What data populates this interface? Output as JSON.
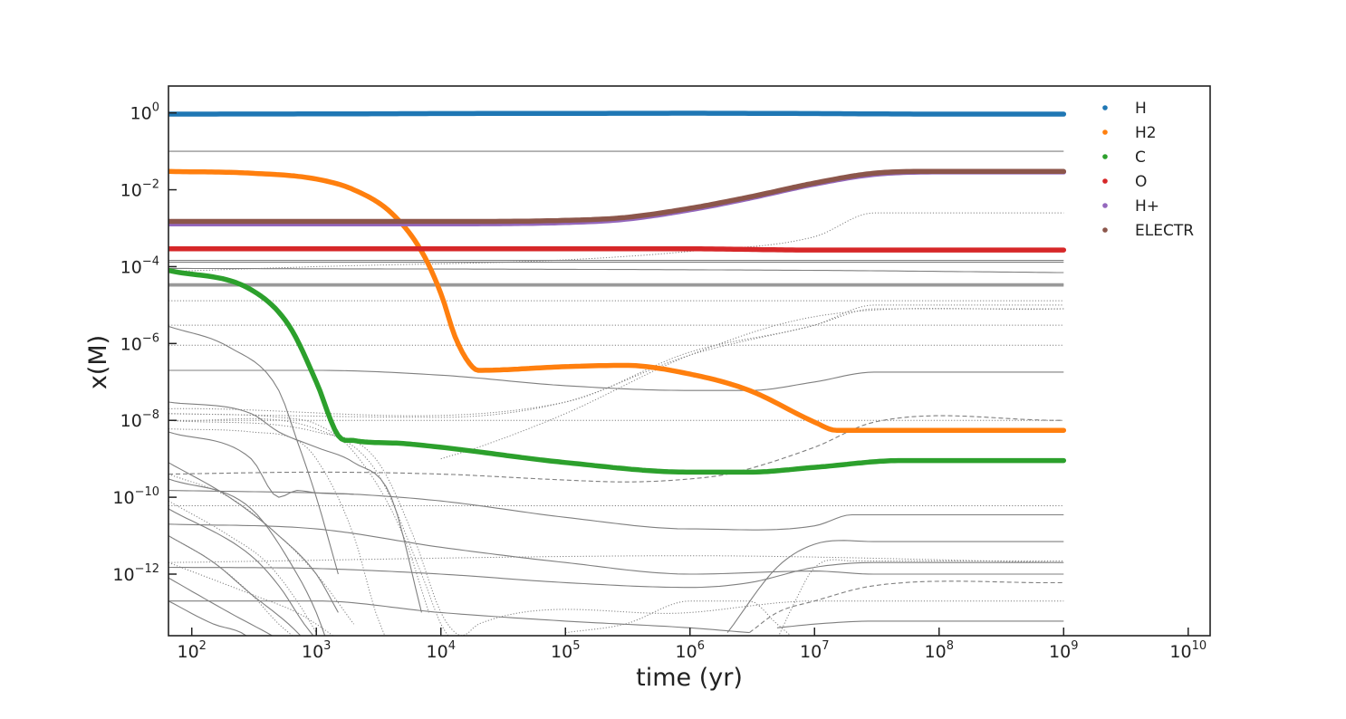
{
  "chart_data": {
    "type": "line",
    "xlabel": "time (yr)",
    "ylabel": "x(M)",
    "xscale": "log",
    "yscale": "log",
    "xlim": [
      65,
      15000000000
    ],
    "ylim": [
      2.5e-14,
      5
    ],
    "grid": false,
    "legend_position": "top-right",
    "x_ticks": [
      {
        "base": "10",
        "exp": "2",
        "value": 100
      },
      {
        "base": "10",
        "exp": "3",
        "value": 1000
      },
      {
        "base": "10",
        "exp": "4",
        "value": 10000
      },
      {
        "base": "10",
        "exp": "5",
        "value": 100000
      },
      {
        "base": "10",
        "exp": "6",
        "value": 1000000
      },
      {
        "base": "10",
        "exp": "7",
        "value": 10000000
      },
      {
        "base": "10",
        "exp": "8",
        "value": 100000000
      },
      {
        "base": "10",
        "exp": "9",
        "value": 1000000000
      },
      {
        "base": "10",
        "exp": "10",
        "value": 10000000000
      }
    ],
    "y_ticks": [
      {
        "base": "10",
        "exp": "0",
        "value": 1
      },
      {
        "base": "10",
        "exp": "−2",
        "value": 0.01
      },
      {
        "base": "10",
        "exp": "−4",
        "value": 0.0001
      },
      {
        "base": "10",
        "exp": "−6",
        "value": 1e-06
      },
      {
        "base": "10",
        "exp": "−8",
        "value": 1e-08
      },
      {
        "base": "10",
        "exp": "−10",
        "value": 1e-10
      },
      {
        "base": "10",
        "exp": "−12",
        "value": 1e-12
      }
    ],
    "series": [
      {
        "name": "H",
        "color": "#1f77b4",
        "x": [
          65,
          1000,
          10000,
          100000,
          1000000,
          10000000,
          100000000,
          1000000000
        ],
        "y": [
          0.93,
          0.94,
          0.96,
          0.97,
          0.98,
          0.96,
          0.93,
          0.93
        ]
      },
      {
        "name": "H2",
        "color": "#ff7f0e",
        "x": [
          65,
          300,
          1000,
          2000,
          4000,
          7000,
          10000,
          13000,
          17000,
          20000,
          100000,
          300000,
          1000000,
          3000000,
          10000000,
          15000000,
          100000000,
          1000000000
        ],
        "y": [
          0.03,
          0.027,
          0.019,
          0.01,
          0.0025,
          0.00025,
          2e-05,
          1.5e-06,
          3e-07,
          2e-07,
          2.5e-07,
          2.7e-07,
          1.6e-07,
          6e-08,
          9e-09,
          5.5e-09,
          5.5e-09,
          5.5e-09
        ]
      },
      {
        "name": "C",
        "color": "#2ca02c",
        "x": [
          65,
          300,
          600,
          1000,
          1500,
          2000,
          5000,
          10000,
          100000,
          1000000,
          3000000,
          10000000,
          50000000,
          1000000000
        ],
        "y": [
          8e-05,
          2.5e-05,
          3e-06,
          1e-07,
          4e-09,
          3e-09,
          2.5e-09,
          2e-09,
          8e-10,
          4.5e-10,
          4.5e-10,
          6e-10,
          9e-10,
          9e-10
        ]
      },
      {
        "name": "O",
        "color": "#d62728",
        "x": [
          65,
          1000,
          10000,
          100000,
          1000000,
          10000000,
          100000000,
          1000000000
        ],
        "y": [
          0.00029,
          0.00029,
          0.00029,
          0.00029,
          0.00029,
          0.00027,
          0.00027,
          0.00027
        ]
      },
      {
        "name": "H+",
        "color": "#9467bd",
        "x": [
          65,
          1000,
          10000,
          100000,
          300000,
          1000000,
          3000000,
          10000000,
          30000000,
          100000000,
          1000000000
        ],
        "y": [
          0.0013,
          0.0013,
          0.0013,
          0.0014,
          0.0017,
          0.003,
          0.006,
          0.014,
          0.025,
          0.029,
          0.029
        ]
      },
      {
        "name": "ELECTR",
        "color": "#8c564b",
        "x": [
          65,
          1000,
          10000,
          100000,
          300000,
          1000000,
          3000000,
          10000000,
          30000000,
          100000000,
          1000000000
        ],
        "y": [
          0.0015,
          0.0015,
          0.0015,
          0.0016,
          0.0019,
          0.0033,
          0.0065,
          0.015,
          0.027,
          0.03,
          0.03
        ]
      }
    ],
    "background_traces": [
      {
        "style": "solid",
        "x": [
          65,
          1000000000
        ],
        "y": [
          0.1,
          0.1
        ]
      },
      {
        "style": "solid",
        "x": [
          65,
          1000000000
        ],
        "y": [
          0.000145,
          0.000145
        ]
      },
      {
        "style": "solid",
        "x": [
          65,
          1000000000
        ],
        "y": [
          0.00013,
          0.00013
        ]
      },
      {
        "style": "solid",
        "x": [
          65,
          10000000,
          1000000000
        ],
        "y": [
          9e-05,
          8e-05,
          7e-05
        ]
      },
      {
        "style": "thick",
        "x": [
          65,
          1000000000
        ],
        "y": [
          3.5e-05,
          3.5e-05
        ]
      },
      {
        "style": "thick",
        "x": [
          65,
          1000000000
        ],
        "y": [
          3.2e-05,
          3.2e-05
        ]
      },
      {
        "style": "dotted",
        "x": [
          65,
          1000000000
        ],
        "y": [
          3e-06,
          3e-06
        ]
      },
      {
        "style": "dotted",
        "x": [
          65,
          1000000000
        ],
        "y": [
          9e-07,
          9e-07
        ]
      },
      {
        "style": "dotted",
        "x": [
          65,
          1000000000
        ],
        "y": [
          1.3e-05,
          1.3e-05
        ]
      },
      {
        "style": "dotted",
        "x": [
          65,
          100000000,
          1000000000
        ],
        "y": [
          1e-08,
          1e-08,
          1e-08
        ]
      },
      {
        "style": "dotted",
        "x": [
          65,
          1000000000
        ],
        "y": [
          6e-11,
          6e-11
        ]
      },
      {
        "style": "dotted",
        "x": [
          65,
          1000000,
          1000000000
        ],
        "y": [
          2e-12,
          3e-12,
          2e-12
        ]
      },
      {
        "style": "dotted",
        "x": [
          65,
          1000,
          100000,
          1000000,
          10000000,
          30000000,
          1000000000
        ],
        "y": [
          7.5e-05,
          0.0001,
          0.00015,
          0.00025,
          0.0006,
          0.0025,
          0.0025
        ]
      },
      {
        "style": "dotted",
        "x": [
          65,
          10000,
          100000,
          1000000,
          10000000,
          30000000,
          1000000000
        ],
        "y": [
          1.5e-08,
          1.2e-08,
          3e-08,
          5e-07,
          3e-06,
          8e-06,
          8e-06
        ]
      },
      {
        "style": "dotted",
        "x": [
          65,
          100000,
          1000000,
          10000000,
          30000000,
          1000000000
        ],
        "y": [
          2e-08,
          3e-08,
          6e-07,
          3e-06,
          1e-05,
          1e-05
        ]
      },
      {
        "style": "dotted",
        "x": [
          10000,
          20000,
          100000,
          1000000,
          10000000,
          1000000000
        ],
        "y": [
          1e-09,
          2e-09,
          1.5e-08,
          5e-07,
          5e-06,
          8e-06
        ]
      },
      {
        "style": "solid",
        "x": [
          65,
          1000,
          10000,
          100000,
          1000000,
          3000000,
          10000000,
          30000000,
          1000000000
        ],
        "y": [
          2e-07,
          2e-07,
          1.5e-07,
          8e-08,
          6e-08,
          6e-08,
          1e-07,
          1.8e-07,
          1.8e-07
        ]
      },
      {
        "style": "solid",
        "x": [
          65,
          1000,
          2000,
          10000,
          100000,
          1000000,
          10000000,
          20000000,
          1000000000
        ],
        "y": [
          1.5e-10,
          1.3e-10,
          1.2e-10,
          8e-11,
          3e-11,
          1.5e-11,
          1.8e-11,
          3.5e-11,
          3.5e-11
        ]
      },
      {
        "style": "solid",
        "x": [
          65,
          1000,
          10000,
          100000,
          1000000,
          10000000,
          30000000,
          1000000000
        ],
        "y": [
          2e-11,
          1.5e-11,
          5e-12,
          2e-12,
          1e-12,
          1.2e-12,
          1e-12,
          1e-12
        ]
      },
      {
        "style": "solid",
        "x": [
          65,
          1000,
          10000,
          100000,
          1000000,
          3000000,
          10000000,
          30000000,
          1000000000
        ],
        "y": [
          1.5e-12,
          1.4e-12,
          1e-12,
          6e-13,
          4.5e-13,
          6e-13,
          1.5e-12,
          2e-12,
          2e-12
        ]
      },
      {
        "style": "solid",
        "x": [
          65,
          1000,
          10000,
          100000,
          1000000,
          3000000
        ],
        "y": [
          2e-13,
          2e-13,
          1e-13,
          6e-14,
          4e-14,
          3e-14
        ]
      },
      {
        "style": "solid",
        "x": [
          2000000,
          5000000,
          10000000,
          30000000,
          1000000000
        ],
        "y": [
          3e-14,
          1.5e-12,
          6e-12,
          7e-12,
          7e-12
        ]
      },
      {
        "style": "solid",
        "x": [
          5000000,
          10000000,
          30000000,
          1000000000
        ],
        "y": [
          4e-14,
          5e-14,
          6e-14,
          6e-14
        ]
      },
      {
        "style": "solid",
        "x": [
          65,
          200,
          500,
          700,
          1000,
          1500
        ],
        "y": [
          2.8e-06,
          8e-07,
          6e-08,
          3e-09,
          1e-10,
          1e-12
        ]
      },
      {
        "style": "solid",
        "x": [
          65,
          300,
          500,
          1000,
          2000,
          4000,
          7000
        ],
        "y": [
          3e-08,
          1.5e-08,
          5e-09,
          2e-09,
          8e-10,
          1e-10,
          1e-13
        ]
      },
      {
        "style": "solid",
        "x": [
          65,
          300,
          500,
          700,
          1000,
          2000
        ],
        "y": [
          5e-09,
          1e-09,
          1e-10,
          1.5e-10,
          1.3e-10,
          1.2e-10
        ]
      },
      {
        "style": "solid",
        "x": [
          65,
          200,
          500,
          1000,
          1500
        ],
        "y": [
          8e-10,
          1e-10,
          1e-11,
          1e-12,
          1e-13
        ]
      },
      {
        "style": "solid",
        "x": [
          65,
          300,
          700,
          1000,
          1200
        ],
        "y": [
          3e-10,
          5e-11,
          1e-12,
          1e-13,
          2e-14
        ]
      },
      {
        "style": "solid",
        "x": [
          65,
          300,
          500,
          800,
          1000
        ],
        "y": [
          5e-11,
          3e-12,
          5e-13,
          5e-14,
          2e-14
        ]
      },
      {
        "style": "solid",
        "x": [
          65,
          150,
          300,
          600,
          800
        ],
        "y": [
          1e-11,
          2e-12,
          3e-13,
          5e-14,
          2e-14
        ]
      },
      {
        "style": "solid",
        "x": [
          65,
          200,
          400,
          500
        ],
        "y": [
          8e-13,
          1e-13,
          3e-14,
          2e-14
        ]
      },
      {
        "style": "solid",
        "x": [
          65,
          150,
          250,
          300
        ],
        "y": [
          2e-13,
          5e-14,
          3e-14,
          2e-14
        ]
      },
      {
        "style": "dashed",
        "x": [
          65,
          1000,
          10000,
          100000,
          300000,
          1000000,
          2000000,
          10000000,
          30000000,
          1000000000
        ],
        "y": [
          4e-10,
          4.5e-10,
          4e-10,
          2.8e-10,
          2.5e-10,
          3e-10,
          4e-10,
          2e-09,
          9e-09,
          1e-08
        ]
      },
      {
        "style": "dashed",
        "x": [
          3000000,
          5000000,
          10000000,
          30000000,
          1000000000
        ],
        "y": [
          3e-14,
          1e-13,
          2e-13,
          5e-13,
          6e-13
        ]
      },
      {
        "style": "dotted",
        "x": [
          65,
          300,
          700,
          1000,
          2000,
          3000,
          4000
        ],
        "y": [
          6e-09,
          5e-09,
          3e-09,
          1e-09,
          1e-11,
          1e-13,
          1e-14
        ]
      },
      {
        "style": "dotted",
        "x": [
          65,
          500,
          1000,
          2000,
          5000,
          8000
        ],
        "y": [
          1.5e-08,
          1.2e-08,
          8e-09,
          1.5e-09,
          1e-11,
          1e-13
        ]
      },
      {
        "style": "dotted",
        "x": [
          65,
          1000,
          3000,
          6000,
          10000,
          13000,
          15000,
          20000,
          1000000,
          10000000,
          1000000000
        ],
        "y": [
          1e-08,
          5e-09,
          1e-09,
          1e-11,
          1e-13,
          3e-14,
          2.5e-14,
          5e-14,
          1e-13,
          2e-13,
          2e-13
        ]
      },
      {
        "style": "dotted",
        "x": [
          65,
          1000,
          3000,
          7000,
          10000,
          12000
        ],
        "y": [
          1e-08,
          6e-09,
          5e-10,
          1e-12,
          5e-14,
          2e-14
        ]
      },
      {
        "style": "dotted",
        "x": [
          65,
          200,
          500,
          1000,
          2000
        ],
        "y": [
          4e-10,
          1e-10,
          1e-11,
          1e-12,
          5e-14
        ]
      },
      {
        "style": "dotted",
        "x": [
          65,
          200,
          400,
          700,
          1000
        ],
        "y": [
          8e-11,
          1e-11,
          2e-12,
          2e-13,
          3e-14
        ]
      },
      {
        "style": "dotted",
        "x": [
          65,
          150,
          300,
          500,
          700
        ],
        "y": [
          1e-11,
          2e-12,
          3e-13,
          5e-14,
          2e-14
        ]
      },
      {
        "style": "dotted",
        "x": [
          65,
          300,
          700,
          1000,
          1500
        ],
        "y": [
          2e-12,
          3e-13,
          1e-13,
          5e-14,
          2e-14
        ]
      },
      {
        "style": "dotted",
        "x": [
          100000,
          300000,
          1000000,
          3000000,
          5000000,
          7000000
        ],
        "y": [
          3e-14,
          5e-14,
          2e-13,
          2e-13,
          5e-14,
          2e-14
        ]
      },
      {
        "style": "dotted",
        "x": [
          5000000,
          7000000,
          10000000,
          20000000,
          1000000000
        ],
        "y": [
          2e-14,
          2e-13,
          1.5e-12,
          2.2e-12,
          2.2e-12
        ]
      }
    ]
  }
}
